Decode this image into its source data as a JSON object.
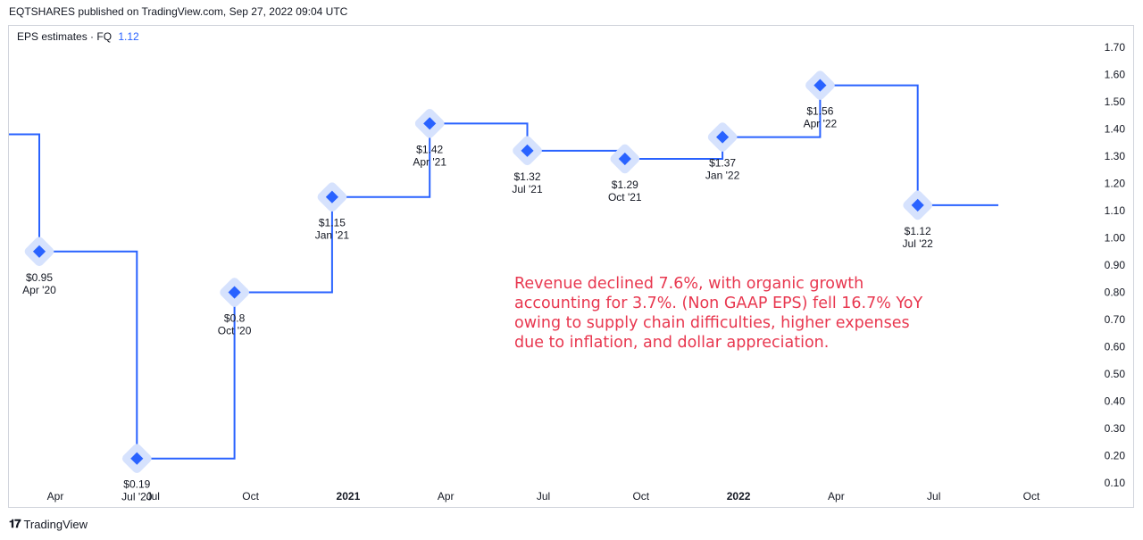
{
  "header": {
    "publisher_line": "EQTSHARES published on TradingView.com, Sep 27, 2022 09:04 UTC"
  },
  "legend": {
    "label": "EPS estimates · FQ",
    "value": "1.12"
  },
  "footer": {
    "brand": "TradingView",
    "logo_icon": "tradingview-logo-icon"
  },
  "annotation": {
    "text": "Revenue declined 7.6%, with organic growth accounting for 3.7%. (Non GAAP EPS) fell 16.7% YoY owing to supply chain difficulties, higher expenses due to inflation, and dollar appreciation."
  },
  "colors": {
    "line": "#2962ff",
    "marker_halo": "#d6e2fd",
    "annotation": "#e8374f",
    "axis_text": "#131722",
    "border": "#d1d4dc"
  },
  "chart_data": {
    "type": "line",
    "step": true,
    "y_axis_ticks": [
      "1.70",
      "1.60",
      "1.50",
      "1.40",
      "1.30",
      "1.20",
      "1.10",
      "1.00",
      "0.90",
      "0.80",
      "0.70",
      "0.60",
      "0.50",
      "0.40",
      "0.30",
      "0.20",
      "0.10"
    ],
    "x_axis_ticks": [
      {
        "label": "Apr",
        "bold": false
      },
      {
        "label": "Jul",
        "bold": false
      },
      {
        "label": "Oct",
        "bold": false
      },
      {
        "label": "2021",
        "bold": true
      },
      {
        "label": "Apr",
        "bold": false
      },
      {
        "label": "Jul",
        "bold": false
      },
      {
        "label": "Oct",
        "bold": false
      },
      {
        "label": "2022",
        "bold": true
      },
      {
        "label": "Apr",
        "bold": false
      },
      {
        "label": "Jul",
        "bold": false
      },
      {
        "label": "Oct",
        "bold": false
      }
    ],
    "ylim": [
      0.05,
      1.72
    ],
    "leading_value": 1.38,
    "points": [
      {
        "value": 0.95,
        "label": "$0.95",
        "period": "Apr '20"
      },
      {
        "value": 0.19,
        "label": "$0.19",
        "period": "Jul '20"
      },
      {
        "value": 0.8,
        "label": "$0.8",
        "period": "Oct '20"
      },
      {
        "value": 1.15,
        "label": "$1.15",
        "period": "Jan '21"
      },
      {
        "value": 1.42,
        "label": "$1.42",
        "period": "Apr '21"
      },
      {
        "value": 1.32,
        "label": "$1.32",
        "period": "Jul '21"
      },
      {
        "value": 1.29,
        "label": "$1.29",
        "period": "Oct '21"
      },
      {
        "value": 1.37,
        "label": "$1.37",
        "period": "Jan '22"
      },
      {
        "value": 1.56,
        "label": "$1.56",
        "period": "Apr '22"
      },
      {
        "value": 1.12,
        "label": "$1.12",
        "period": "Jul '22"
      }
    ]
  }
}
